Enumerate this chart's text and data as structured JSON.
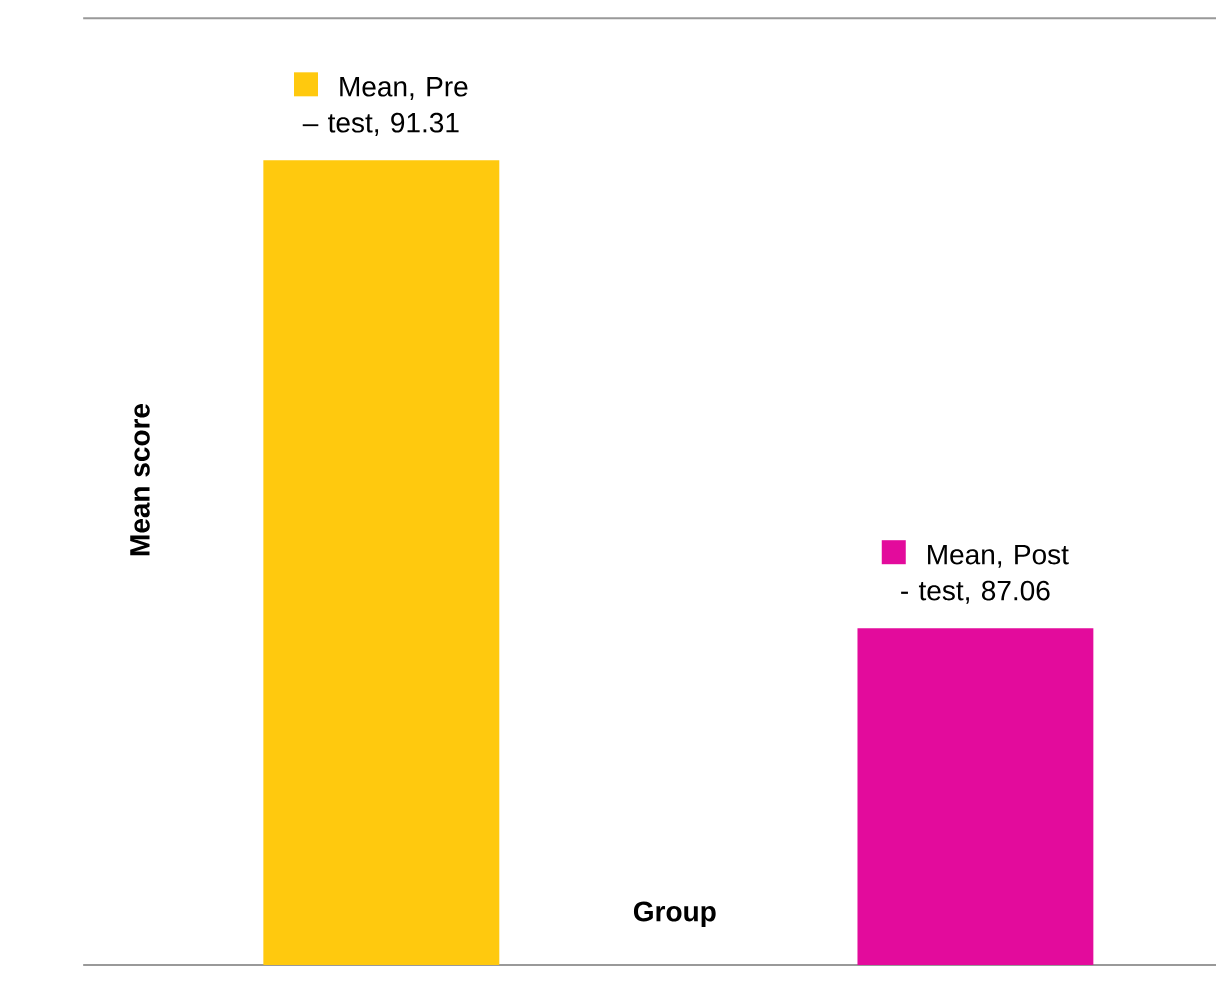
{
  "chart_data": {
    "type": "bar",
    "xlabel": "Group",
    "ylabel": "Mean score",
    "categories": [
      null,
      null
    ],
    "values": [
      91.31,
      87.06
    ],
    "colors": [
      "#ffc90e",
      "#e30b9c"
    ],
    "value_labels": [
      "Mean, Pre – test, 91.31",
      "Mean, Post - test, 87.06"
    ],
    "ylim": [
      84,
      92.6
    ]
  }
}
